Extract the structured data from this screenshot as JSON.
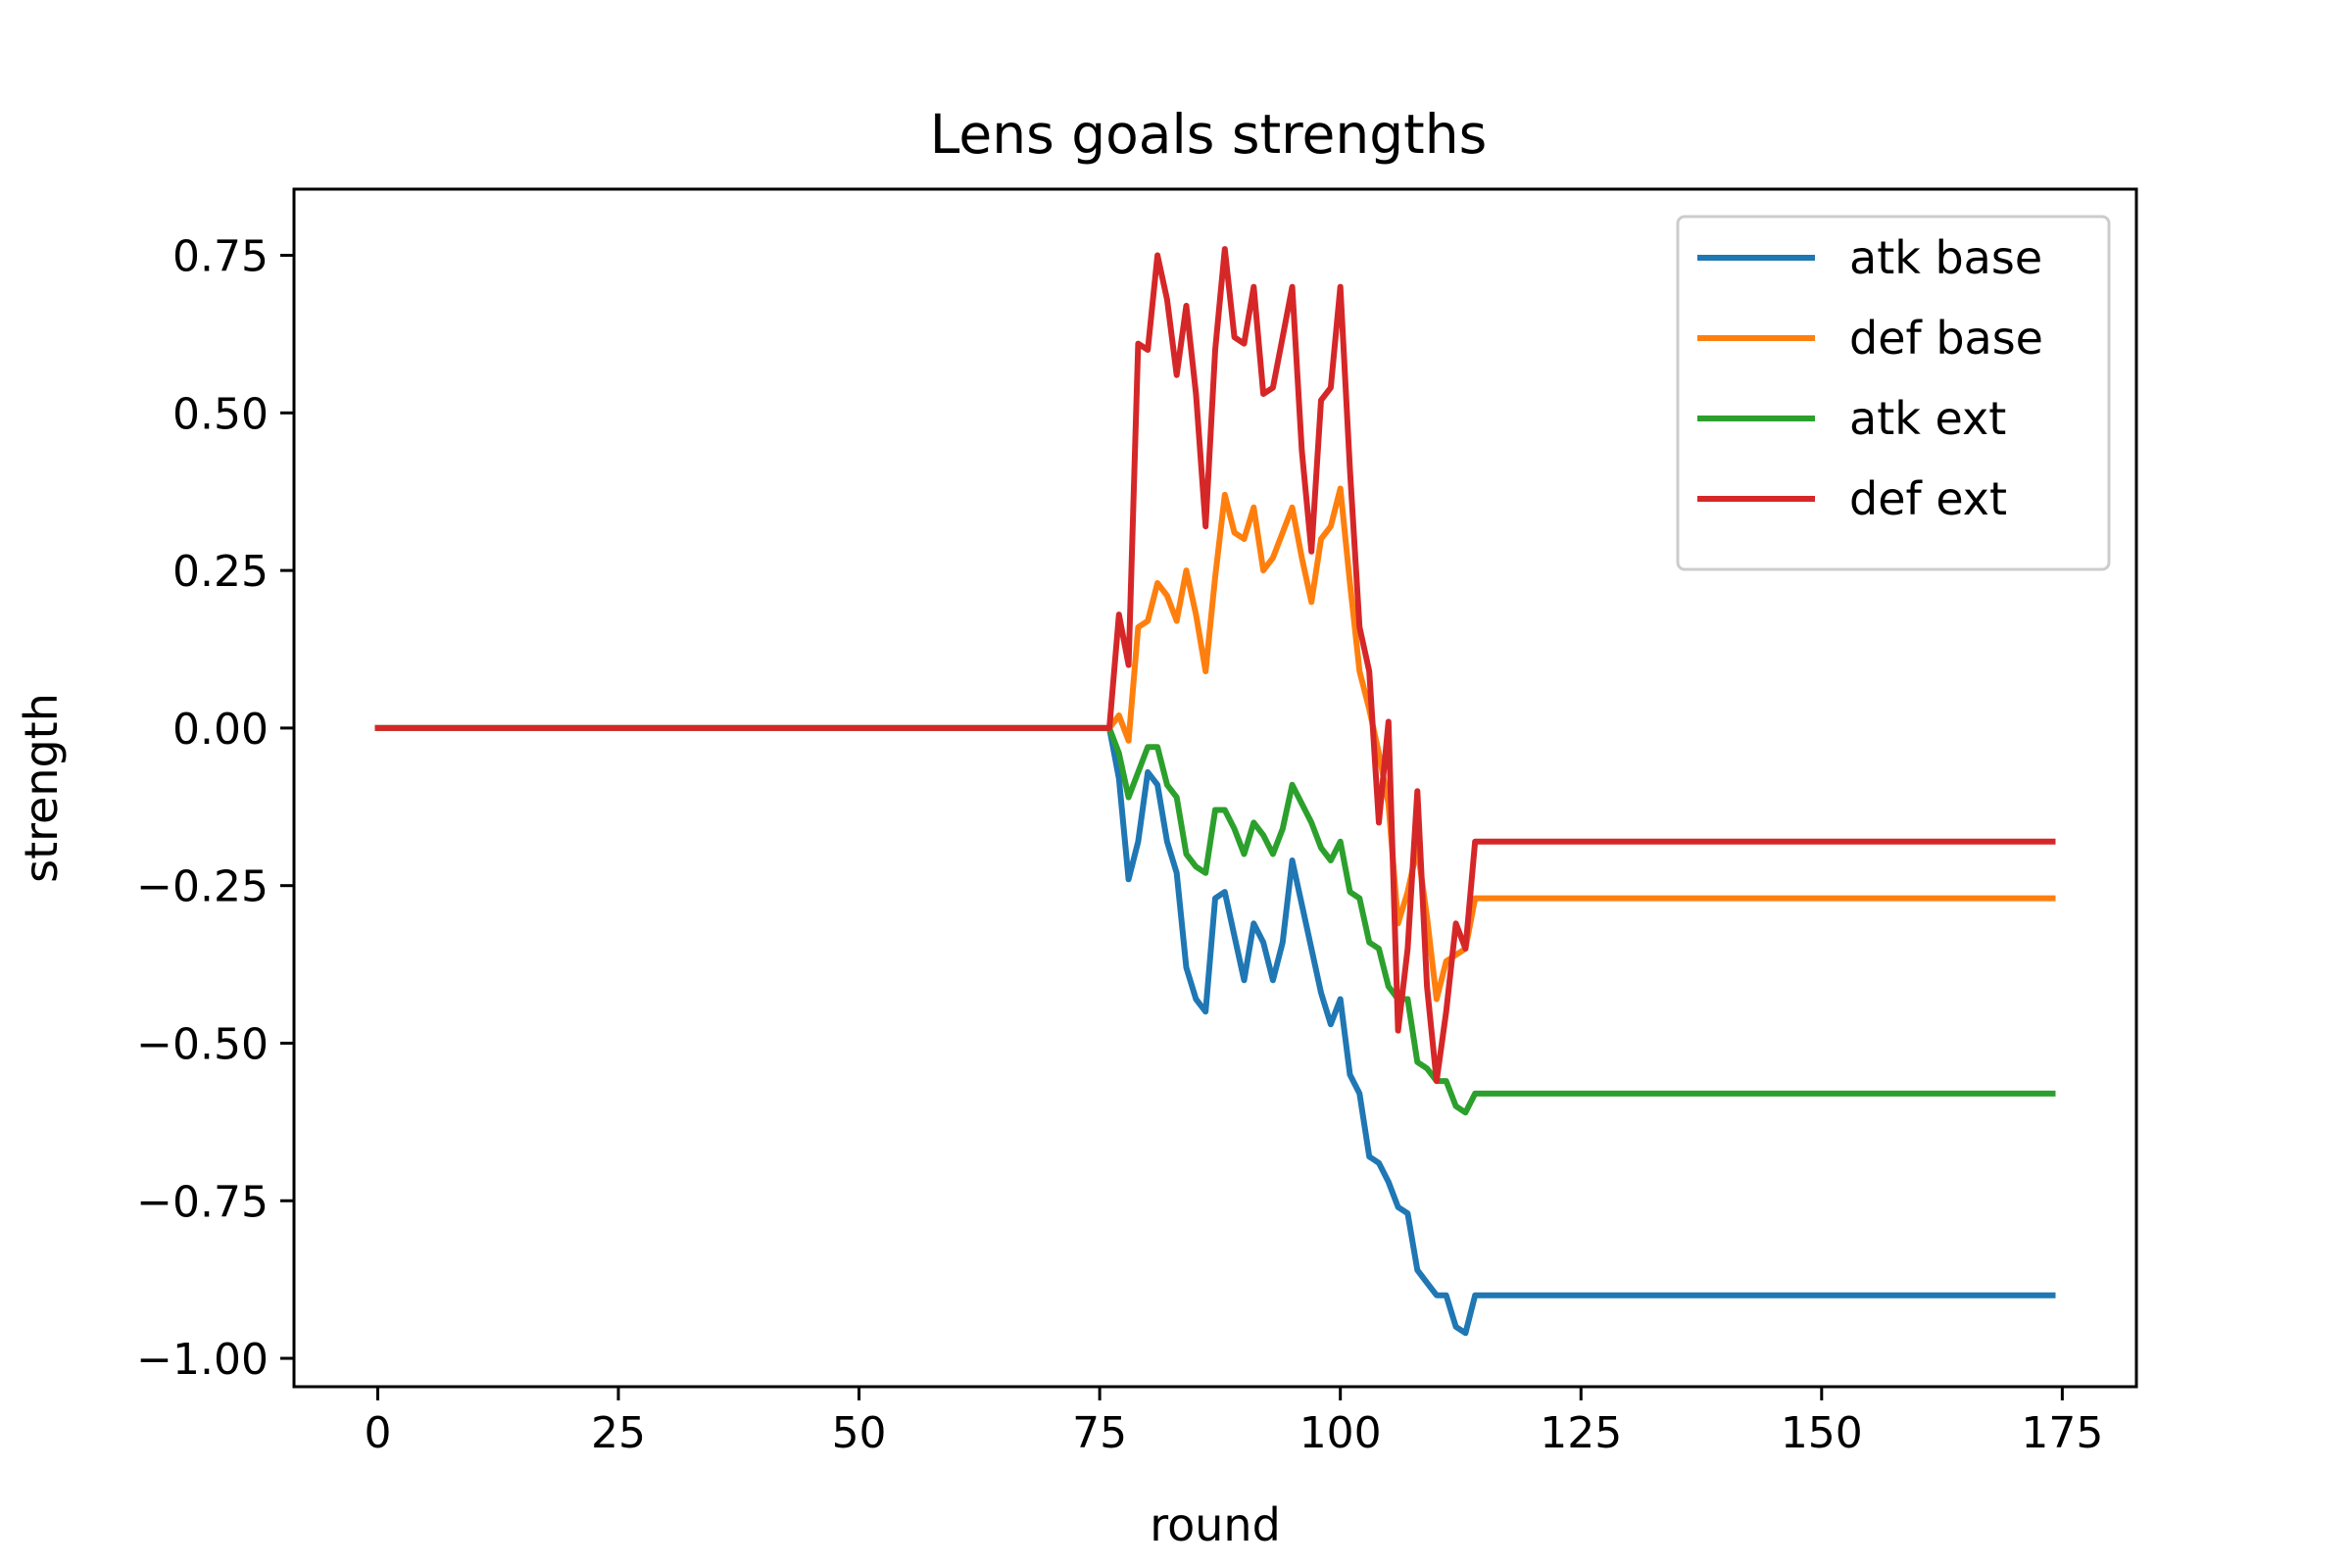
{
  "chart_data": {
    "type": "line",
    "title": "Lens goals strengths",
    "xlabel": "round",
    "ylabel": "strength",
    "xlim": [
      -8.7,
      182.7
    ],
    "ylim": [
      -1.045,
      0.855
    ],
    "xticks": [
      0,
      25,
      50,
      75,
      100,
      125,
      150,
      175
    ],
    "xtick_labels": [
      "0",
      "25",
      "50",
      "75",
      "100",
      "125",
      "150",
      "175"
    ],
    "yticks": [
      0.75,
      0.5,
      0.25,
      0.0,
      -0.25,
      -0.5,
      -0.75,
      -1.0
    ],
    "ytick_labels": [
      "0.75",
      "0.50",
      "0.25",
      "0.00",
      "−0.25",
      "−0.50",
      "−0.75",
      "−1.00"
    ],
    "grid": false,
    "legend_position": "top-right",
    "series": [
      {
        "name": "atk base",
        "color": "#1f77b4",
        "x": [
          0,
          76,
          77,
          78,
          79,
          80,
          81,
          82,
          83,
          84,
          85,
          86,
          87,
          88,
          89,
          90,
          91,
          92,
          93,
          94,
          95,
          96,
          97,
          98,
          99,
          100,
          101,
          102,
          103,
          104,
          105,
          106,
          107,
          108,
          109,
          110,
          111,
          112,
          113,
          114,
          174
        ],
        "y": [
          0,
          0,
          -0.08,
          -0.24,
          -0.18,
          -0.07,
          -0.09,
          -0.18,
          -0.23,
          -0.38,
          -0.43,
          -0.45,
          -0.27,
          -0.26,
          -0.33,
          -0.4,
          -0.31,
          -0.34,
          -0.4,
          -0.34,
          -0.21,
          -0.28,
          -0.35,
          -0.42,
          -0.47,
          -0.43,
          -0.55,
          -0.58,
          -0.68,
          -0.69,
          -0.72,
          -0.76,
          -0.77,
          -0.86,
          -0.88,
          -0.9,
          -0.9,
          -0.95,
          -0.96,
          -0.9,
          -0.9
        ]
      },
      {
        "name": "def base",
        "color": "#ff7f0e",
        "x": [
          0,
          76,
          77,
          78,
          79,
          80,
          81,
          82,
          83,
          84,
          85,
          86,
          87,
          88,
          89,
          90,
          91,
          92,
          93,
          94,
          95,
          96,
          97,
          98,
          99,
          100,
          101,
          102,
          103,
          104,
          105,
          106,
          107,
          108,
          109,
          110,
          111,
          112,
          113,
          114,
          174
        ],
        "y": [
          0,
          0,
          0.02,
          -0.02,
          0.16,
          0.17,
          0.23,
          0.21,
          0.17,
          0.25,
          0.18,
          0.09,
          0.24,
          0.37,
          0.31,
          0.3,
          0.35,
          0.25,
          0.27,
          0.31,
          0.35,
          0.27,
          0.2,
          0.3,
          0.32,
          0.38,
          0.23,
          0.09,
          0.03,
          -0.04,
          -0.12,
          -0.31,
          -0.26,
          -0.19,
          -0.3,
          -0.43,
          -0.37,
          -0.36,
          -0.35,
          -0.27,
          -0.27
        ]
      },
      {
        "name": "atk ext",
        "color": "#2ca02c",
        "x": [
          0,
          76,
          77,
          78,
          79,
          80,
          81,
          82,
          83,
          84,
          85,
          86,
          87,
          88,
          89,
          90,
          91,
          92,
          93,
          94,
          95,
          96,
          97,
          98,
          99,
          100,
          101,
          102,
          103,
          104,
          105,
          106,
          107,
          108,
          109,
          110,
          111,
          112,
          113,
          114,
          174
        ],
        "y": [
          0,
          0,
          -0.04,
          -0.11,
          -0.07,
          -0.03,
          -0.03,
          -0.09,
          -0.11,
          -0.2,
          -0.22,
          -0.23,
          -0.13,
          -0.13,
          -0.16,
          -0.2,
          -0.15,
          -0.17,
          -0.2,
          -0.16,
          -0.09,
          -0.12,
          -0.15,
          -0.19,
          -0.21,
          -0.18,
          -0.26,
          -0.27,
          -0.34,
          -0.35,
          -0.41,
          -0.43,
          -0.43,
          -0.53,
          -0.54,
          -0.56,
          -0.56,
          -0.6,
          -0.61,
          -0.58,
          -0.58
        ]
      },
      {
        "name": "def ext",
        "color": "#d62728",
        "x": [
          0,
          76,
          77,
          78,
          79,
          80,
          81,
          82,
          83,
          84,
          85,
          86,
          87,
          88,
          89,
          90,
          91,
          92,
          93,
          94,
          95,
          96,
          97,
          98,
          99,
          100,
          101,
          102,
          103,
          104,
          105,
          106,
          107,
          108,
          109,
          110,
          111,
          112,
          113,
          114,
          174
        ],
        "y": [
          0,
          0,
          0.18,
          0.1,
          0.61,
          0.6,
          0.75,
          0.68,
          0.56,
          0.67,
          0.53,
          0.32,
          0.6,
          0.76,
          0.62,
          0.61,
          0.7,
          0.53,
          0.54,
          0.62,
          0.7,
          0.44,
          0.28,
          0.52,
          0.54,
          0.7,
          0.41,
          0.16,
          0.09,
          -0.15,
          0.01,
          -0.48,
          -0.35,
          -0.1,
          -0.41,
          -0.56,
          -0.45,
          -0.31,
          -0.35,
          -0.18,
          -0.18
        ]
      }
    ]
  }
}
